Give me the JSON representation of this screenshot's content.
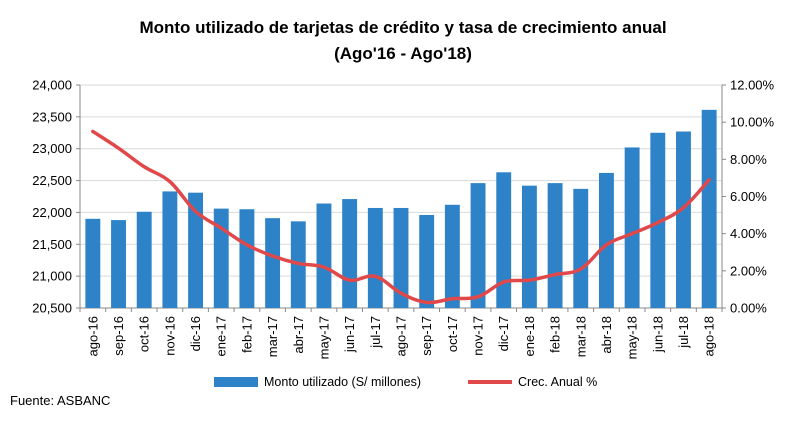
{
  "chart_data": {
    "type": "bar+line",
    "title": "Monto utilizado de tarjetas de crédito y tasa de crecimiento anual",
    "subtitle": "(Ago'16 - Ago'18)",
    "categories": [
      "ago-16",
      "sep-16",
      "oct-16",
      "nov-16",
      "dic-16",
      "ene-17",
      "feb-17",
      "mar-17",
      "abr-17",
      "may-17",
      "jun-17",
      "jul-17",
      "ago-17",
      "sep-17",
      "oct-17",
      "nov-17",
      "dic-17",
      "ene-18",
      "feb-18",
      "mar-18",
      "abr-18",
      "may-18",
      "jun-18",
      "jul-18",
      "ago-18"
    ],
    "series": [
      {
        "name": "Monto utilizado (S/ millones)",
        "type": "bar",
        "axis": "left",
        "color": "#2E83C8",
        "values": [
          21900,
          21880,
          22010,
          22330,
          22310,
          22060,
          22050,
          21910,
          21860,
          22140,
          22210,
          22070,
          22070,
          21960,
          22120,
          22460,
          22630,
          22420,
          22460,
          22370,
          22620,
          23020,
          23250,
          23270,
          23610
        ]
      },
      {
        "name": "Crec. Anual %",
        "type": "line",
        "axis": "right",
        "color": "#E0484A",
        "values": [
          9.5,
          8.6,
          7.6,
          6.8,
          5.2,
          4.3,
          3.4,
          2.8,
          2.4,
          2.2,
          1.5,
          1.7,
          0.8,
          0.3,
          0.5,
          0.6,
          1.4,
          1.5,
          1.8,
          2.1,
          3.4,
          4.0,
          4.6,
          5.4,
          6.9
        ]
      }
    ],
    "ylim_left": [
      20500,
      24000
    ],
    "yticks_left": [
      "20,500",
      "21,000",
      "21,500",
      "22,000",
      "22,500",
      "23,000",
      "23,500",
      "24,000"
    ],
    "ylim_right": [
      0,
      12
    ],
    "yticks_right": [
      "0.00%",
      "2.00%",
      "4.00%",
      "6.00%",
      "8.00%",
      "10.00%",
      "12.00%"
    ],
    "grid": true,
    "legend_position": "bottom"
  },
  "source": "Fuente: ASBANC"
}
